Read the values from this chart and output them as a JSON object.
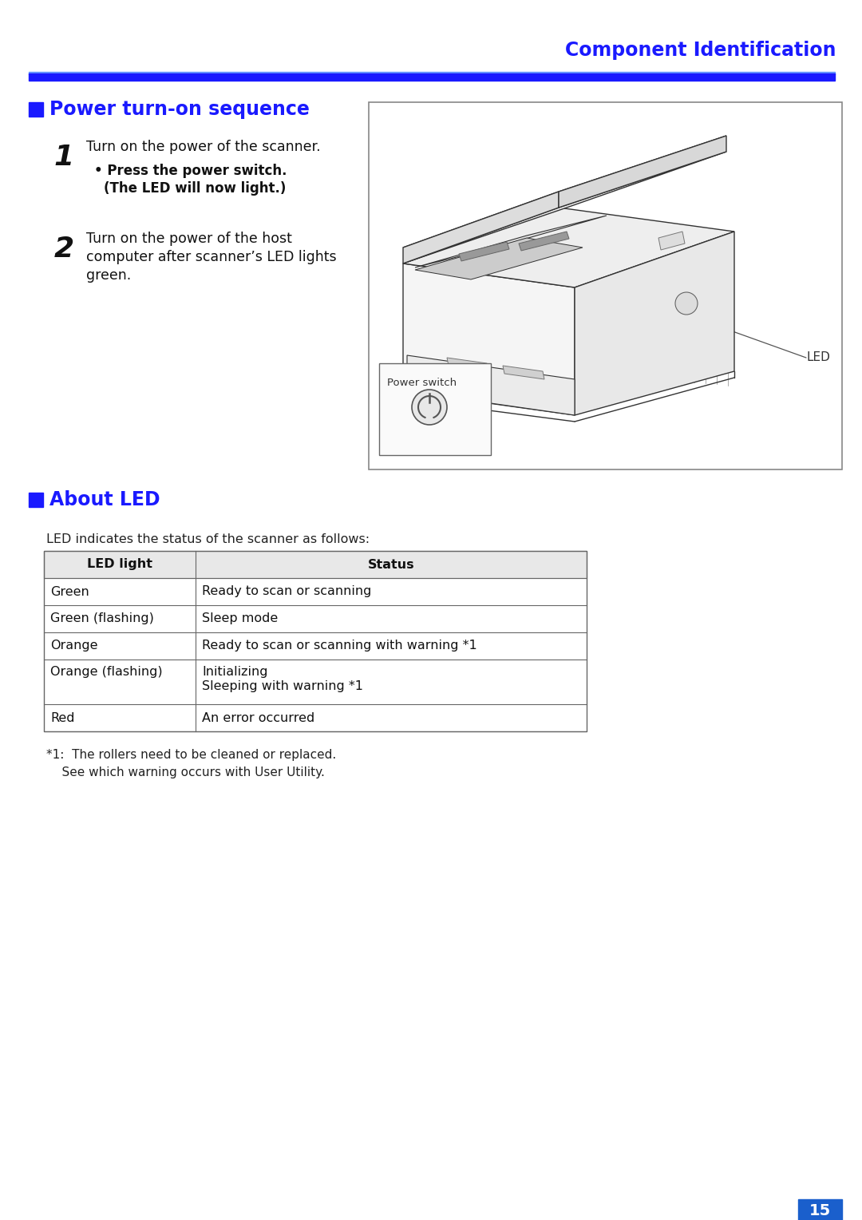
{
  "bg_color": "#ffffff",
  "header_title": "Component Identification",
  "header_title_color": "#1a1aff",
  "header_bar_thick_color": "#1a1aff",
  "header_bar_thin_color": "#6666ff",
  "section1_title": "Power turn-on sequence",
  "section1_title_color": "#1a1aff",
  "step1_num": "1",
  "step1_text": "Turn on the power of the scanner.",
  "step1_sub1": "• Press the power switch.",
  "step1_sub2": "(The LED will now light.)",
  "step2_num": "2",
  "step2_text1": "Turn on the power of the host",
  "step2_text2": "computer after scanner’s LED lights",
  "step2_text3": "green.",
  "section2_title": "About LED",
  "section2_title_color": "#1a1aff",
  "led_intro": "LED indicates the status of the scanner as follows:",
  "table_header": [
    "LED light",
    "Status"
  ],
  "table_rows": [
    [
      "Green",
      "Ready to scan or scanning"
    ],
    [
      "Green (flashing)",
      "Sleep mode"
    ],
    [
      "Orange",
      "Ready to scan or scanning with warning *1"
    ],
    [
      "Orange (flashing)",
      "Initializing\nSleeping with warning *1"
    ],
    [
      "Red",
      "An error occurred"
    ]
  ],
  "footnote1": "*1:  The rollers need to be cleaned or replaced.",
  "footnote2": "    See which warning occurs with User Utility.",
  "page_number": "15",
  "page_number_bg": "#1a5fcc"
}
